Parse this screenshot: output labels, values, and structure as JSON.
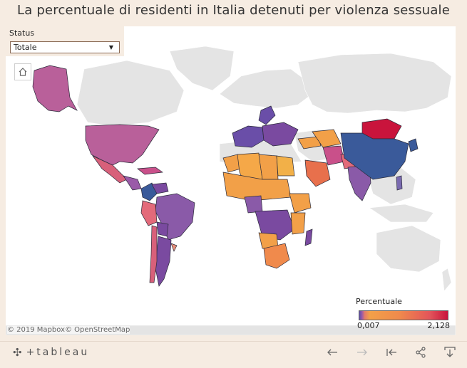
{
  "header": {
    "title": "La percentuale di residenti in Italia detenuti per violenza sessuale"
  },
  "filter": {
    "label": "Status",
    "selected": "Totale"
  },
  "map": {
    "attribution": "© 2019 Mapbox© OpenStreetMap",
    "legend": {
      "title": "Percentuale",
      "min": "0,007",
      "max": "2,128"
    },
    "colors": {
      "land": "#e6e6e6",
      "ocean": "#ffffff",
      "low": "#6a5aa8",
      "mid": "#f2a048",
      "high": "#c9143c"
    }
  },
  "toolbar": {
    "logo": "+tableau",
    "icons": [
      "undo-icon",
      "redo-icon",
      "revert-icon",
      "share-icon",
      "download-icon"
    ]
  }
}
